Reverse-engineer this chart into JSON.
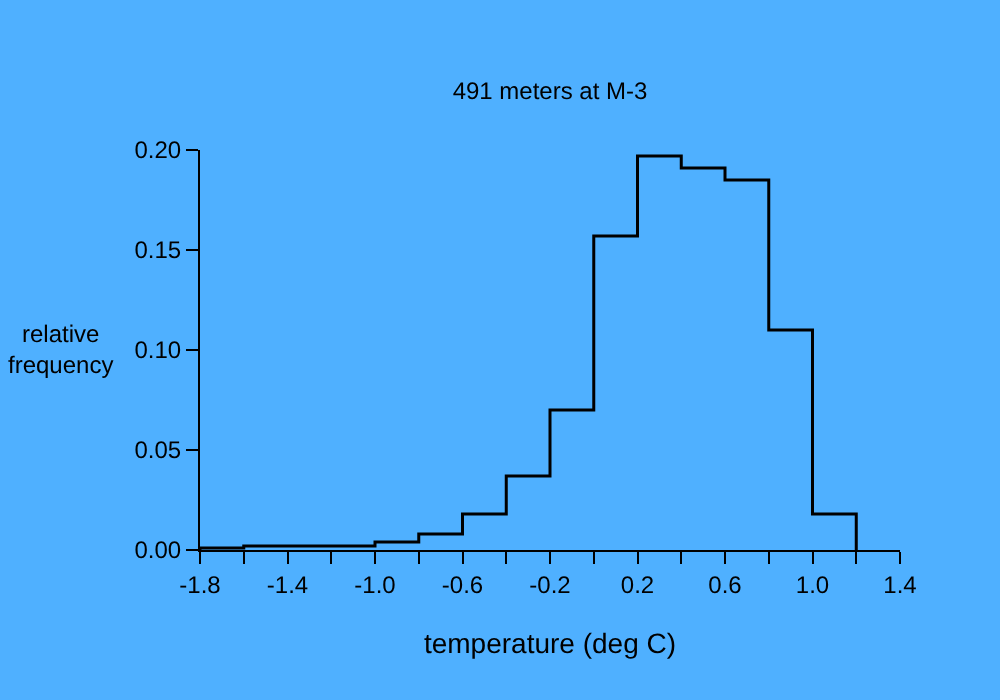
{
  "chart_data": {
    "type": "histogram",
    "title": "491 meters at M-3",
    "xlabel": "temperature (deg C)",
    "ylabel": "relative\nfrequency",
    "bins": [
      -1.8,
      -1.6,
      -1.4,
      -1.2,
      -1.0,
      -0.8,
      -0.6,
      -0.4,
      -0.2,
      0.0,
      0.2,
      0.4,
      0.6,
      0.8,
      1.0,
      1.2
    ],
    "values": [
      0.001,
      0.002,
      0.002,
      0.002,
      0.004,
      0.008,
      0.018,
      0.037,
      0.07,
      0.157,
      0.197,
      0.191,
      0.185,
      0.11,
      0.018
    ],
    "color": "#000000",
    "xlim": [
      -1.8,
      1.4
    ],
    "xticks": [
      -1.8,
      {
        "value": -1.6,
        "label": null
      },
      -1.4,
      {
        "value": -1.2,
        "label": null
      },
      {
        "value": -1.0,
        "label": "-1.0"
      },
      {
        "value": -0.8,
        "label": null
      },
      -0.6,
      {
        "value": -0.4,
        "label": null
      },
      -0.2,
      {
        "value": 0.0,
        "label": null
      },
      0.2,
      {
        "value": 0.4,
        "label": null
      },
      0.6,
      {
        "value": 0.8,
        "label": null
      },
      {
        "value": 1.0,
        "label": "1.0"
      },
      {
        "value": 1.2,
        "label": null
      },
      1.4
    ],
    "ylim": [
      0,
      0.2
    ],
    "yticks": [
      {
        "value": 0,
        "label": "0.00"
      },
      {
        "value": 0.05,
        "label": "0.05"
      },
      {
        "value": 0.1,
        "label": "0.10"
      },
      {
        "value": 0.15,
        "label": "0.15"
      },
      {
        "value": 0.2,
        "label": "0.20"
      }
    ],
    "grid": false
  }
}
